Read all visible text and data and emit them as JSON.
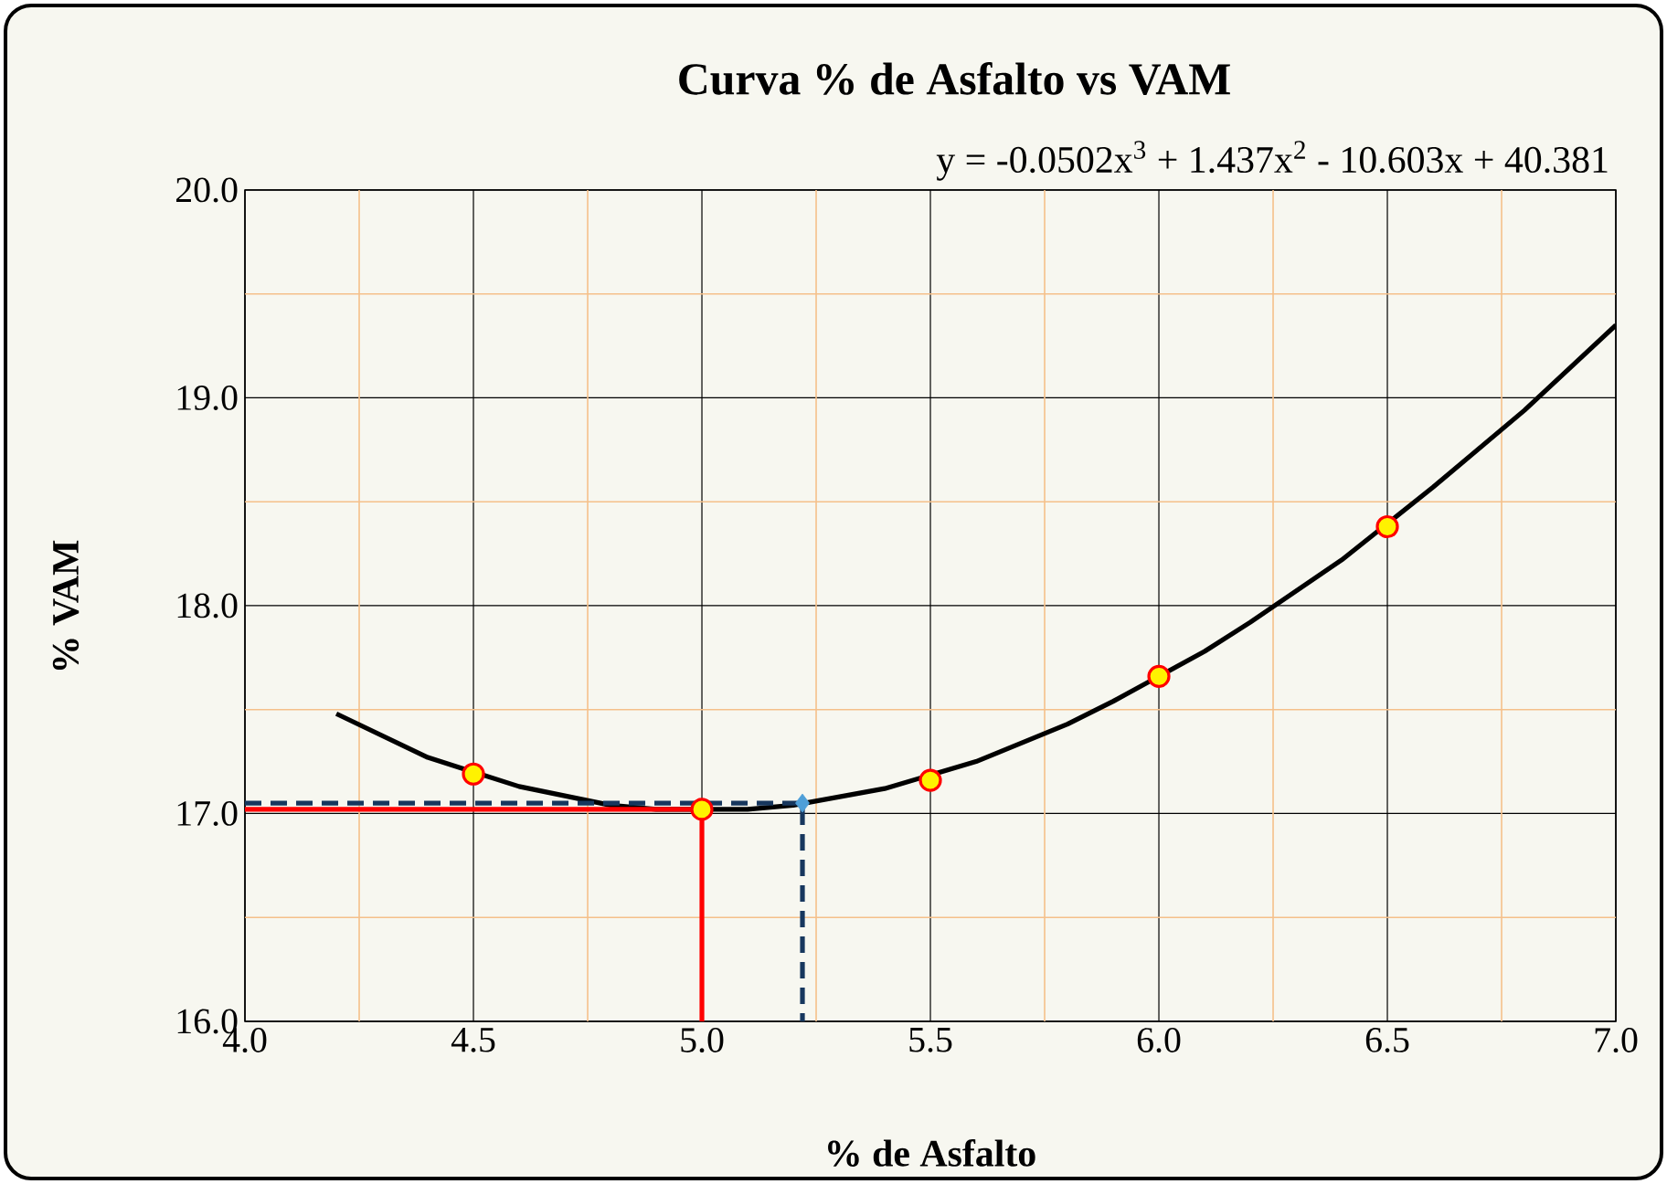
{
  "chart_data": {
    "type": "scatter",
    "title": "Curva % de Asfalto vs VAM",
    "xlabel": "% de Asfalto",
    "ylabel": "% VAM",
    "annotations": [
      "y = -0.0502x$^{3}$ + 1.437x$^{2}$ - 10.603x + 40.381"
    ],
    "xlim": [
      4.0,
      7.0
    ],
    "ylim": [
      16.0,
      20.0
    ],
    "xticks": [
      {
        "value": 4.0,
        "label": "4.0"
      },
      {
        "value": 4.25,
        "label": null
      },
      {
        "value": 4.5,
        "label": "4.5"
      },
      {
        "value": 4.75,
        "label": null
      },
      {
        "value": 5.0,
        "label": "5.0"
      },
      {
        "value": 5.25,
        "label": null
      },
      {
        "value": 5.5,
        "label": "5.5"
      },
      {
        "value": 5.75,
        "label": null
      },
      {
        "value": 6.0,
        "label": "6.0"
      },
      {
        "value": 6.25,
        "label": null
      },
      {
        "value": 6.5,
        "label": "6.5"
      },
      {
        "value": 6.75,
        "label": null
      },
      {
        "value": 7.0,
        "label": "7.0"
      }
    ],
    "yticks": [
      {
        "value": 16.0,
        "label": "16.0"
      },
      {
        "value": 16.5,
        "label": null
      },
      {
        "value": 17.0,
        "label": "17.0"
      },
      {
        "value": 17.5,
        "label": null
      },
      {
        "value": 18.0,
        "label": "18.0"
      },
      {
        "value": 18.5,
        "label": null
      },
      {
        "value": 19.0,
        "label": "19.0"
      },
      {
        "value": 19.5,
        "label": null
      },
      {
        "value": 20.0,
        "label": "20.0"
      }
    ],
    "grid": true,
    "series": [
      {
        "type": "line",
        "color": "#000000",
        "marker": "none",
        "line_style": "solid",
        "x": [
          4.2,
          4.4,
          4.6,
          4.8,
          4.9,
          5.1,
          5.2,
          5.4,
          5.6,
          5.8,
          5.9,
          6.1,
          6.2,
          6.4,
          6.6,
          6.8,
          7.0
        ],
        "values": [
          17.48,
          17.27,
          17.13,
          17.04,
          17.02,
          17.02,
          17.04,
          17.12,
          17.25,
          17.43,
          17.54,
          17.78,
          17.92,
          18.22,
          18.57,
          18.94,
          19.35
        ]
      },
      {
        "type": "line",
        "color": "#ff0000",
        "marker": "none",
        "line_style": "solid",
        "x": [
          4.0,
          5.0,
          5.0
        ],
        "values": [
          17.02,
          17.02,
          16.0
        ]
      },
      {
        "type": "line",
        "color": "#17375e",
        "marker": "none",
        "line_style": "dashed",
        "x": [
          4.0,
          5.22,
          5.22
        ],
        "values": [
          17.05,
          17.05,
          16.0
        ]
      },
      {
        "color": "#ff0000",
        "marker": "circle",
        "x": [
          4.5,
          5.0,
          5.5,
          6.0,
          6.5
        ],
        "values": [
          17.19,
          17.02,
          17.16,
          17.66,
          18.38
        ]
      },
      {
        "color": "#4f9fd8",
        "marker": "diamond",
        "x": [
          5.22
        ],
        "values": [
          17.05
        ]
      }
    ]
  }
}
